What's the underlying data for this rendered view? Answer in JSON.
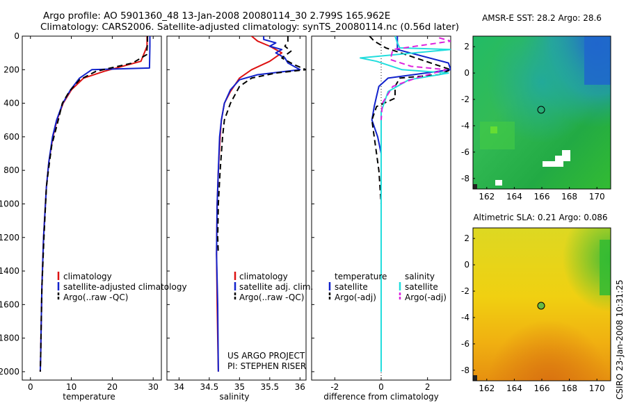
{
  "header": {
    "line1": "Argo profile: AO 5901360_48 13-Jan-2008 20080114_30 2.799S 165.962E",
    "line2": "Climatology: CARS2006. Satellite-adjusted climatology: synTS_20080114.nc (0.56d later)"
  },
  "side_label": "CSIRO 23-Jan-2008 10:31:25",
  "colors": {
    "climatology": "#dd1111",
    "satellite": "#1122cc",
    "argo": "#000000",
    "sal_satellite": "#22dddd",
    "sal_argo": "#dd22dd"
  },
  "chart_data": [
    {
      "id": "temperature",
      "type": "line",
      "xlabel": "temperature",
      "xlim": [
        -2,
        32
      ],
      "ylim": [
        2050,
        0
      ],
      "xticks": [
        0,
        10,
        20,
        30
      ],
      "yticks": [
        0,
        200,
        400,
        600,
        800,
        1000,
        1200,
        1400,
        1600,
        1800,
        2000
      ],
      "legend": {
        "position": "lower-right",
        "entries": [
          "climatology",
          "satellite-adjusted climatology",
          "Argo(..raw -QC)"
        ]
      },
      "series": [
        {
          "name": "climatology",
          "color": "#dd1111",
          "dash": "",
          "x": [
            28.5,
            28.5,
            27.0,
            18.0,
            13.0,
            10.0,
            8.0,
            6.5,
            5.5,
            4.5,
            3.9,
            3.2,
            2.8,
            2.6,
            2.5,
            2.4
          ],
          "y": [
            0,
            60,
            150,
            210,
            250,
            320,
            400,
            500,
            600,
            750,
            900,
            1200,
            1500,
            1750,
            1900,
            2000
          ]
        },
        {
          "name": "satellite-adjusted climatology",
          "color": "#1122cc",
          "dash": "",
          "x": [
            29.2,
            29.2,
            29.1,
            15.0,
            12.0,
            9.8,
            7.9,
            6.4,
            5.4,
            4.5,
            3.9,
            3.2,
            2.8,
            2.6,
            2.5,
            2.4
          ],
          "y": [
            0,
            60,
            190,
            200,
            250,
            320,
            400,
            500,
            600,
            750,
            900,
            1200,
            1500,
            1750,
            1900,
            2000
          ]
        },
        {
          "name": "Argo(..raw -QC)",
          "color": "#000000",
          "dash": "8,5",
          "x": [
            28.6,
            28.6,
            28.4,
            25.0,
            16.0,
            12.0,
            9.5,
            7.8,
            6.8,
            5.2,
            4.4,
            3.9,
            3.3,
            2.8,
            2.6,
            2.5,
            2.4
          ],
          "y": [
            0,
            40,
            110,
            160,
            210,
            260,
            330,
            400,
            500,
            650,
            800,
            900,
            1200,
            1500,
            1750,
            1900,
            2000
          ]
        }
      ]
    },
    {
      "id": "salinity",
      "type": "line",
      "xlabel": "salinity",
      "xlim": [
        33.8,
        36.1
      ],
      "ylim": [
        2050,
        0
      ],
      "xticks": [
        34,
        34.5,
        35,
        35.5,
        36
      ],
      "legend": {
        "position": "lower-right",
        "entries": [
          "climatology",
          "satellite adj. clim.",
          "Argo(..raw -QC)"
        ]
      },
      "annotation": [
        "US ARGO PROJECT",
        "PI: STEPHEN RISER"
      ],
      "series": [
        {
          "name": "climatology",
          "color": "#dd1111",
          "dash": "",
          "x": [
            35.2,
            35.3,
            35.5,
            35.7,
            35.5,
            35.2,
            35.0,
            34.85,
            34.75,
            34.7,
            34.68,
            34.65,
            34.63,
            34.62,
            34.63,
            34.64,
            34.65
          ],
          "y": [
            0,
            30,
            60,
            100,
            150,
            200,
            250,
            330,
            400,
            500,
            600,
            800,
            1000,
            1300,
            1600,
            1800,
            2000
          ]
        },
        {
          "name": "satellite adj. clim.",
          "color": "#1122cc",
          "dash": "",
          "x": [
            35.4,
            35.4,
            35.6,
            35.5,
            35.7,
            35.6,
            35.75,
            35.8,
            35.95,
            36.0,
            35.3,
            35.0,
            34.85,
            34.75,
            34.7,
            34.67,
            34.65,
            34.63,
            34.62,
            34.64,
            34.65
          ],
          "y": [
            0,
            20,
            40,
            60,
            80,
            100,
            130,
            160,
            190,
            200,
            230,
            260,
            320,
            400,
            500,
            600,
            800,
            1000,
            1300,
            1600,
            2000
          ]
        },
        {
          "name": "Argo(..raw -QC)",
          "color": "#000000",
          "dash": "8,5",
          "x": [
            35.8,
            35.8,
            35.75,
            35.85,
            35.7,
            35.9,
            36.1,
            35.6,
            35.2,
            35.0,
            34.85,
            34.75,
            34.72,
            34.68,
            34.65,
            34.64,
            34.65
          ],
          "y": [
            0,
            30,
            60,
            90,
            130,
            170,
            200,
            220,
            250,
            300,
            400,
            500,
            600,
            800,
            1000,
            1200,
            1300
          ]
        }
      ]
    },
    {
      "id": "difference",
      "type": "line",
      "xlabel": "difference from climatology",
      "xlim": [
        -3,
        3
      ],
      "ylim": [
        2050,
        0
      ],
      "xticks": [
        -2,
        0,
        2
      ],
      "legend": {
        "position": "lower-center",
        "temperature": {
          "title": "temperature",
          "entries": [
            "satellite",
            "Argo(-adj)"
          ]
        },
        "salinity": {
          "title": "salinity",
          "entries": [
            "satellite",
            "Argo(-adj)"
          ]
        }
      },
      "series": [
        {
          "name": "temperature satellite",
          "color": "#1122cc",
          "dash": "",
          "x": [
            0.7,
            0.7,
            2.9,
            3.0,
            0.3,
            -0.1,
            -0.2,
            -0.3,
            -0.4,
            -0.15,
            0.0,
            0.0,
            0.0,
            0.0,
            0.0
          ],
          "y": [
            0,
            80,
            160,
            200,
            250,
            300,
            360,
            420,
            500,
            600,
            700,
            900,
            1200,
            1600,
            2000
          ]
        },
        {
          "name": "temperature Argo(-adj)",
          "color": "#000000",
          "dash": "8,5",
          "x": [
            -0.5,
            -0.3,
            0.2,
            3.0,
            2.5,
            0.8,
            0.6,
            0.6,
            -0.2,
            -0.4,
            -0.3,
            -0.1,
            0.0,
            0.0
          ],
          "y": [
            0,
            30,
            70,
            200,
            230,
            250,
            300,
            370,
            420,
            500,
            600,
            800,
            1000,
            1200
          ]
        },
        {
          "name": "salinity satellite",
          "color": "#22dddd",
          "dash": "",
          "x": [
            0.6,
            0.7,
            0.8,
            3.0,
            -0.9,
            -0.2,
            0.9,
            2.9,
            1.2,
            0.3,
            0.0,
            0.0,
            0.0,
            0.0,
            0.0
          ],
          "y": [
            0,
            40,
            70,
            80,
            130,
            150,
            200,
            220,
            260,
            330,
            450,
            700,
            1000,
            1600,
            2000
          ]
        },
        {
          "name": "salinity Argo(-adj)",
          "color": "#dd22dd",
          "dash": "8,5",
          "x": [
            2.5,
            3.0,
            0.5,
            0.4,
            1.3,
            2.8,
            1.5,
            0.5,
            0.05,
            0.0
          ],
          "y": [
            10,
            30,
            80,
            140,
            180,
            200,
            250,
            300,
            400,
            500
          ]
        }
      ]
    },
    {
      "id": "sst_map",
      "type": "heatmap",
      "title": "AMSR-E SST: 28.2 Argo: 28.6",
      "xlim": [
        161,
        171
      ],
      "ylim": [
        -8.8,
        2.8
      ],
      "xticks": [
        162,
        164,
        166,
        168,
        170
      ],
      "yticks": [
        -8,
        -6,
        -4,
        -2,
        0,
        2
      ],
      "marker": {
        "lon": 165.96,
        "lat": -2.8
      }
    },
    {
      "id": "sla_map",
      "type": "heatmap",
      "title": "Altimetric SLA: 0.21 Argo: 0.086",
      "xlim": [
        161,
        171
      ],
      "ylim": [
        -8.8,
        2.8
      ],
      "xticks": [
        162,
        164,
        166,
        168,
        170
      ],
      "yticks": [
        -8,
        -6,
        -4,
        -2,
        0,
        2
      ],
      "marker": {
        "lon": 165.96,
        "lat": -2.8
      }
    }
  ]
}
